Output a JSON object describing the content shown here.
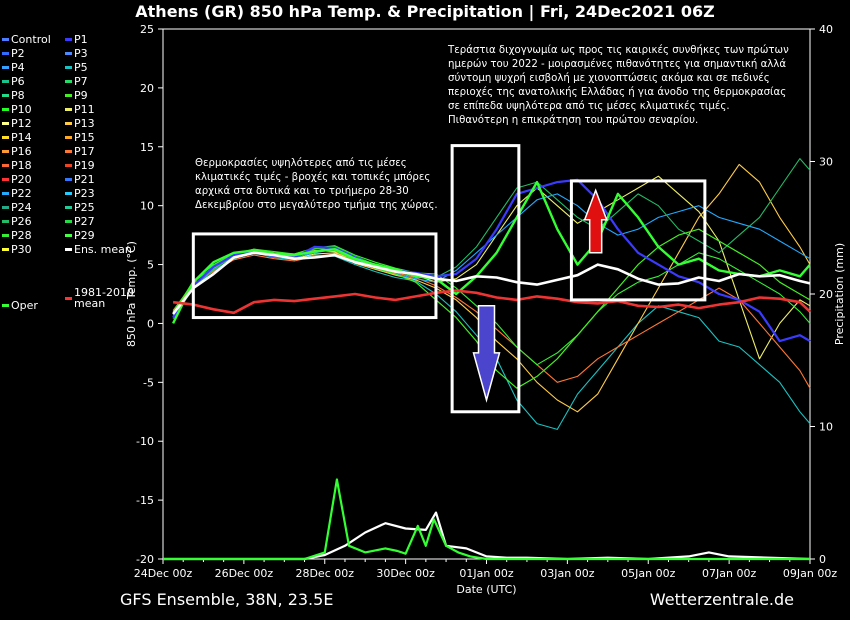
{
  "title": "Athens  (GR)  850 hPa Temp. & Precipitation | Fri, 24Dec2021 06Z",
  "footer_left": "GFS Ensemble, 38N, 23.5E",
  "footer_right": "Wetterzentrale.de",
  "annotations": {
    "left_lines": [
      "Θερμοκρασίες υψηλότερες από τις μέσες",
      "κλιματικές τιμές - βροχές και τοπικές μπόρες",
      "αρχικά στα δυτικά και το τριήμερο 28-30",
      "Δεκεμβρίου στο μεγαλύτερο τμήμα της χώρας."
    ],
    "right_lines": [
      "Τεράστια διχογνωμία ως προς τις καιρικές συνθήκες των πρώτων",
      "ημερών του 2022 - μοιρασμένες πιθανότητες για σημαντική αλλά",
      "σύντομη ψυχρή εισβολή με χιονοπτώσεις ακόμα και σε πεδινές",
      "περιοχές της ανατολικής Ελλάδας ή για άνοδο της θερμοκρασίας",
      "σε επίπεδα υψηλότερα από τις μέσες κλιματικές τιμές.",
      "Πιθανότερη η επικράτηση του πρώτου σεναρίου."
    ]
  },
  "legend": [
    {
      "label": "Control",
      "color": "#4a7dff"
    },
    {
      "label": "P1",
      "color": "#3b3bff"
    },
    {
      "label": "P2",
      "color": "#2f6cff"
    },
    {
      "label": "P3",
      "color": "#4b8bff"
    },
    {
      "label": "P4",
      "color": "#33a0ff"
    },
    {
      "label": "P5",
      "color": "#19c3c3"
    },
    {
      "label": "P6",
      "color": "#19c38c"
    },
    {
      "label": "P7",
      "color": "#22dd66"
    },
    {
      "label": "P8",
      "color": "#22dd88"
    },
    {
      "label": "P9",
      "color": "#44ee22"
    },
    {
      "label": "P10",
      "color": "#22ff22"
    },
    {
      "label": "P11",
      "color": "#eeee66"
    },
    {
      "label": "P12",
      "color": "#ffff88"
    },
    {
      "label": "P13",
      "color": "#ffcc44"
    },
    {
      "label": "P14",
      "color": "#ffdd22"
    },
    {
      "label": "P15",
      "color": "#ffaa22"
    },
    {
      "label": "P16",
      "color": "#ff9933"
    },
    {
      "label": "P17",
      "color": "#ff7733"
    },
    {
      "label": "P18",
      "color": "#ff6633"
    },
    {
      "label": "P19",
      "color": "#ee4422"
    },
    {
      "label": "P20",
      "color": "#ff3333"
    },
    {
      "label": "P21",
      "color": "#3377ff"
    },
    {
      "label": "P22",
      "color": "#22aaff"
    },
    {
      "label": "P23",
      "color": "#22ccff"
    },
    {
      "label": "P24",
      "color": "#22aa88"
    },
    {
      "label": "P25",
      "color": "#22cc99"
    },
    {
      "label": "P26",
      "color": "#22bb66"
    },
    {
      "label": "P27",
      "color": "#22dd44"
    },
    {
      "label": "P28",
      "color": "#33ee33"
    },
    {
      "label": "P29",
      "color": "#44ff44"
    },
    {
      "label": "P30",
      "color": "#ffff33"
    },
    {
      "label": "Ens. mean",
      "color": "#ffffff"
    },
    {
      "label": "1981-2010 mean",
      "color": "#ff3333"
    },
    {
      "label": "Oper",
      "color": "#33ff33"
    }
  ],
  "chart_data": {
    "type": "line",
    "xlabel": "Date (UTC)",
    "ylabel": "850 hPa Temp. (°C)",
    "y2label": "Precipitation (mm)",
    "ylim": [
      -20,
      25
    ],
    "y2lim": [
      0,
      40
    ],
    "yticks": [
      -20,
      -15,
      -10,
      -5,
      0,
      5,
      10,
      15,
      20,
      25
    ],
    "y2ticks": [
      0,
      10,
      20,
      30,
      40
    ],
    "xticks": [
      "24Dec 00z",
      "26Dec 00z",
      "28Dec 00z",
      "30Dec 00z",
      "01Jan 00z",
      "03Jan 00z",
      "05Jan 00z",
      "07Jan 00z",
      "09Jan 00z"
    ],
    "x_days": [
      0,
      2,
      4,
      6,
      8,
      10,
      12,
      14,
      16
    ],
    "grid": false,
    "series": [
      {
        "name": "Ens. mean",
        "color": "#ffffff",
        "width": 2.6,
        "x": [
          0.25,
          0.75,
          1.25,
          1.75,
          2.25,
          2.75,
          3.25,
          3.75,
          4.25,
          4.75,
          5.25,
          5.75,
          6.25,
          6.75,
          7.25,
          7.75,
          8.25,
          8.75,
          9.25,
          9.75,
          10.25,
          10.75,
          11.25,
          11.75,
          12.25,
          12.75,
          13.25,
          13.75,
          14.25,
          14.75,
          15.25,
          15.75,
          16.0
        ],
        "y": [
          0.8,
          3.0,
          4.2,
          5.6,
          6.0,
          5.8,
          5.5,
          5.6,
          5.8,
          5.2,
          4.8,
          4.4,
          4.2,
          3.8,
          3.6,
          4.0,
          3.9,
          3.5,
          3.3,
          3.7,
          4.1,
          5.0,
          4.6,
          3.8,
          3.3,
          3.4,
          3.9,
          3.6,
          4.2,
          4.0,
          4.1,
          3.6,
          3.4
        ]
      },
      {
        "name": "1981-2010 mean",
        "color": "#ee3333",
        "width": 2.6,
        "x": [
          0.25,
          0.75,
          1.25,
          1.75,
          2.25,
          2.75,
          3.25,
          3.75,
          4.25,
          4.75,
          5.25,
          5.75,
          6.25,
          6.75,
          7.25,
          7.75,
          8.25,
          8.75,
          9.25,
          9.75,
          10.25,
          10.75,
          11.25,
          11.75,
          12.25,
          12.75,
          13.25,
          13.75,
          14.25,
          14.75,
          15.25,
          15.75,
          16.0
        ],
        "y": [
          1.8,
          1.6,
          1.2,
          0.9,
          1.8,
          2.0,
          1.9,
          2.1,
          2.3,
          2.5,
          2.2,
          2.0,
          2.3,
          2.6,
          2.8,
          2.6,
          2.2,
          2.0,
          2.3,
          2.1,
          1.8,
          1.7,
          1.9,
          1.5,
          1.4,
          1.6,
          1.3,
          1.6,
          1.8,
          2.2,
          2.1,
          1.8,
          1.0
        ]
      },
      {
        "name": "Oper",
        "color": "#33ff33",
        "width": 2.4,
        "x": [
          0.25,
          0.75,
          1.25,
          1.75,
          2.25,
          2.75,
          3.25,
          3.75,
          4.25,
          4.75,
          5.25,
          5.75,
          6.25,
          6.75,
          7.25,
          7.75,
          8.25,
          8.75,
          9.25,
          9.75,
          10.25,
          10.75,
          11.25,
          11.75,
          12.25,
          12.75,
          13.25,
          13.75,
          14.25,
          14.75,
          15.25,
          15.75,
          16.0
        ],
        "y": [
          0.0,
          3.5,
          5.2,
          6.0,
          6.2,
          5.9,
          5.8,
          6.1,
          6.3,
          5.5,
          5.0,
          4.6,
          4.0,
          3.8,
          2.5,
          4.0,
          6.0,
          9.0,
          12.0,
          8.0,
          5.0,
          7.0,
          11.0,
          9.0,
          6.5,
          5.0,
          5.5,
          4.5,
          4.2,
          4.0,
          4.5,
          4.0,
          5.0
        ]
      },
      {
        "name": "P1",
        "color": "#3b3bff",
        "width": 2.2,
        "x": [
          0.25,
          0.75,
          1.25,
          1.75,
          2.25,
          2.75,
          3.25,
          3.75,
          4.25,
          4.75,
          5.25,
          5.75,
          6.25,
          6.75,
          7.25,
          7.75,
          8.25,
          8.75,
          9.25,
          9.75,
          10.25,
          10.75,
          11.25,
          11.75,
          12.25,
          12.75,
          13.25,
          13.75,
          14.25,
          14.75,
          15.25,
          15.75,
          16.0
        ],
        "y": [
          0.5,
          3.2,
          4.8,
          5.8,
          6.1,
          5.7,
          5.6,
          6.5,
          6.4,
          5.6,
          4.9,
          4.5,
          4.3,
          4.0,
          4.2,
          5.5,
          8.0,
          11.0,
          11.5,
          12.0,
          12.2,
          10.5,
          8.0,
          6.0,
          5.0,
          4.0,
          3.5,
          2.5,
          2.0,
          1.0,
          -1.5,
          -1.0,
          -1.5
        ]
      },
      {
        "name": "P5",
        "color": "#19c3c3",
        "width": 1.1,
        "x": [
          0.25,
          0.75,
          1.25,
          1.75,
          2.25,
          2.75,
          3.25,
          3.75,
          4.25,
          4.75,
          5.25,
          5.75,
          6.25,
          6.75,
          7.25,
          7.75,
          8.25,
          8.75,
          9.25,
          9.75,
          10.25,
          10.75,
          11.25,
          11.75,
          12.25,
          12.75,
          13.25,
          13.75,
          14.25,
          14.75,
          15.25,
          15.75,
          16.0
        ],
        "y": [
          1.0,
          3.0,
          4.5,
          5.5,
          6.0,
          5.6,
          5.4,
          5.8,
          5.7,
          5.0,
          4.4,
          3.9,
          3.6,
          2.5,
          1.0,
          -1.0,
          -3.0,
          -6.5,
          -8.5,
          -9.0,
          -6.0,
          -4.0,
          -2.0,
          0.0,
          1.5,
          1.0,
          0.5,
          -1.5,
          -2.0,
          -3.5,
          -5.0,
          -7.5,
          -8.5
        ]
      },
      {
        "name": "P9",
        "color": "#44ee22",
        "width": 1.2,
        "x": [
          0.25,
          0.75,
          1.25,
          1.75,
          2.25,
          2.75,
          3.25,
          3.75,
          4.25,
          4.75,
          5.25,
          5.75,
          6.25,
          6.75,
          7.25,
          7.75,
          8.25,
          8.75,
          9.25,
          9.75,
          10.25,
          10.75,
          11.25,
          11.75,
          12.25,
          12.75,
          13.25,
          13.75,
          14.25,
          14.75,
          15.25,
          15.75,
          16.0
        ],
        "y": [
          0.8,
          3.6,
          5.0,
          5.9,
          6.3,
          6.0,
          5.9,
          6.4,
          6.2,
          5.3,
          4.7,
          4.2,
          3.5,
          2.0,
          0.5,
          -1.5,
          -4.0,
          -5.5,
          -4.5,
          -3.0,
          -1.0,
          1.0,
          3.0,
          5.0,
          6.5,
          7.5,
          8.0,
          7.0,
          6.0,
          5.0,
          3.5,
          2.5,
          2.0
        ]
      },
      {
        "name": "P11",
        "color": "#eeee66",
        "width": 1.1,
        "x": [
          0.25,
          0.75,
          1.25,
          1.75,
          2.25,
          2.75,
          3.25,
          3.75,
          4.25,
          4.75,
          5.25,
          5.75,
          6.25,
          6.75,
          7.25,
          7.75,
          8.25,
          8.75,
          9.25,
          9.75,
          10.25,
          10.75,
          11.25,
          11.75,
          12.25,
          12.75,
          13.25,
          13.75,
          14.25,
          14.75,
          15.25,
          15.75,
          16.0
        ],
        "y": [
          0.6,
          3.1,
          4.6,
          5.7,
          6.0,
          5.7,
          5.5,
          5.9,
          6.0,
          5.4,
          4.9,
          4.6,
          4.1,
          3.5,
          3.8,
          5.0,
          7.5,
          10.0,
          11.5,
          10.0,
          8.5,
          9.5,
          10.5,
          11.5,
          12.5,
          11.0,
          9.5,
          7.0,
          2.0,
          -3.0,
          0.0,
          2.0,
          1.5
        ]
      },
      {
        "name": "P13",
        "color": "#ffcc44",
        "width": 1.1,
        "x": [
          0.25,
          0.75,
          1.25,
          1.75,
          2.25,
          2.75,
          3.25,
          3.75,
          4.25,
          4.75,
          5.25,
          5.75,
          6.25,
          6.75,
          7.25,
          7.75,
          8.25,
          8.75,
          9.25,
          9.75,
          10.25,
          10.75,
          11.25,
          11.75,
          12.25,
          12.75,
          13.25,
          13.75,
          14.25,
          14.75,
          15.25,
          15.75,
          16.0
        ],
        "y": [
          0.9,
          3.3,
          4.7,
          5.6,
          6.2,
          5.9,
          5.7,
          6.2,
          6.1,
          5.1,
          4.6,
          4.1,
          3.7,
          3.0,
          2.0,
          0.5,
          -1.5,
          -3.0,
          -5.0,
          -6.5,
          -7.5,
          -6.0,
          -3.0,
          0.0,
          3.0,
          6.0,
          9.0,
          11.0,
          13.5,
          12.0,
          9.0,
          6.5,
          5.0
        ]
      },
      {
        "name": "P17",
        "color": "#ff7733",
        "width": 1.1,
        "x": [
          0.25,
          0.75,
          1.25,
          1.75,
          2.25,
          2.75,
          3.25,
          3.75,
          4.25,
          4.75,
          5.25,
          5.75,
          6.25,
          6.75,
          7.25,
          7.75,
          8.25,
          8.75,
          9.25,
          9.75,
          10.25,
          10.75,
          11.25,
          11.75,
          12.25,
          12.75,
          13.25,
          13.75,
          14.25,
          14.75,
          15.25,
          15.75,
          16.0
        ],
        "y": [
          1.1,
          3.4,
          4.4,
          5.4,
          5.8,
          5.5,
          5.3,
          5.7,
          5.9,
          5.3,
          4.8,
          4.3,
          3.9,
          3.2,
          2.2,
          1.0,
          -0.5,
          -2.0,
          -3.5,
          -5.0,
          -4.5,
          -3.0,
          -2.0,
          -1.0,
          0.0,
          1.0,
          2.0,
          3.0,
          2.0,
          0.0,
          -2.0,
          -4.0,
          -5.5
        ]
      },
      {
        "name": "P22",
        "color": "#22aaff",
        "width": 1.1,
        "x": [
          0.25,
          0.75,
          1.25,
          1.75,
          2.25,
          2.75,
          3.25,
          3.75,
          4.25,
          4.75,
          5.25,
          5.75,
          6.25,
          6.75,
          7.25,
          7.75,
          8.25,
          8.75,
          9.25,
          9.75,
          10.25,
          10.75,
          11.25,
          11.75,
          12.25,
          12.75,
          13.25,
          13.75,
          14.25,
          14.75,
          15.25,
          15.75,
          16.0
        ],
        "y": [
          0.7,
          3.2,
          4.9,
          5.8,
          6.1,
          5.8,
          5.6,
          6.0,
          6.3,
          5.4,
          4.7,
          4.2,
          3.8,
          3.5,
          4.5,
          6.0,
          7.5,
          9.0,
          10.5,
          11.0,
          10.0,
          8.5,
          7.5,
          8.0,
          9.0,
          9.5,
          10.0,
          9.0,
          8.5,
          8.0,
          7.0,
          6.0,
          5.5
        ]
      },
      {
        "name": "P26",
        "color": "#22bb66",
        "width": 1.1,
        "x": [
          0.25,
          0.75,
          1.25,
          1.75,
          2.25,
          2.75,
          3.25,
          3.75,
          4.25,
          4.75,
          5.25,
          5.75,
          6.25,
          6.75,
          7.25,
          7.75,
          8.25,
          8.75,
          9.25,
          9.75,
          10.25,
          10.75,
          11.25,
          11.75,
          12.25,
          12.75,
          13.25,
          13.75,
          14.25,
          14.75,
          15.25,
          15.75,
          16.0
        ],
        "y": [
          0.4,
          3.0,
          4.6,
          5.7,
          6.2,
          5.9,
          5.8,
          6.3,
          6.5,
          5.7,
          5.0,
          4.4,
          4.0,
          3.9,
          4.8,
          6.5,
          9.0,
          11.5,
          12.0,
          10.5,
          9.0,
          8.0,
          9.5,
          11.0,
          10.0,
          8.0,
          7.0,
          6.0,
          7.5,
          9.0,
          11.5,
          14.0,
          13.0
        ]
      },
      {
        "name": "P28",
        "color": "#33ee33",
        "width": 1.1,
        "x": [
          0.25,
          0.75,
          1.25,
          1.75,
          2.25,
          2.75,
          3.25,
          3.75,
          4.25,
          4.75,
          5.25,
          5.75,
          6.25,
          6.75,
          7.25,
          7.75,
          8.25,
          8.75,
          9.25,
          9.75,
          10.25,
          10.75,
          11.25,
          11.75,
          12.25,
          12.75,
          13.25,
          13.75,
          14.25,
          14.75,
          15.25,
          15.75,
          16.0
        ],
        "y": [
          1.0,
          3.5,
          4.8,
          5.9,
          6.3,
          6.1,
          5.9,
          6.4,
          6.6,
          5.8,
          5.2,
          4.7,
          4.3,
          4.2,
          3.0,
          1.5,
          0.0,
          -2.0,
          -3.5,
          -2.5,
          -1.0,
          1.0,
          2.5,
          3.5,
          4.0,
          5.0,
          6.0,
          5.5,
          4.5,
          3.5,
          2.5,
          1.0,
          0.0
        ]
      }
    ],
    "precipitation": [
      {
        "name": "Ens. mean precipitation",
        "color": "#ffffff",
        "x": [
          0,
          2,
          3.5,
          4.0,
          4.5,
          5.0,
          5.5,
          6.0,
          6.5,
          6.75,
          7.0,
          7.5,
          8.0,
          8.5,
          9.0,
          10.0,
          11.0,
          12.0,
          13.0,
          13.5,
          14.0,
          15.0,
          16.0
        ],
        "y": [
          0,
          0,
          0,
          0.3,
          1.0,
          2.0,
          2.7,
          2.3,
          2.2,
          3.5,
          1.0,
          0.8,
          0.2,
          0.1,
          0.1,
          0,
          0.1,
          0,
          0.2,
          0.5,
          0.2,
          0.1,
          0
        ]
      },
      {
        "name": "Oper precipitation",
        "color": "#33ff33",
        "x": [
          0,
          3.5,
          4.0,
          4.3,
          4.6,
          5.0,
          5.5,
          5.8,
          6.0,
          6.3,
          6.5,
          6.7,
          7.0,
          7.3,
          7.6,
          8.0,
          10.0,
          12.0,
          14.0,
          16.0
        ],
        "y": [
          0,
          0,
          0.5,
          6.0,
          1.0,
          0.5,
          0.8,
          0.6,
          0.4,
          2.5,
          1.0,
          3.0,
          1.0,
          0.5,
          0.2,
          0,
          0,
          0,
          0,
          0
        ]
      }
    ]
  }
}
